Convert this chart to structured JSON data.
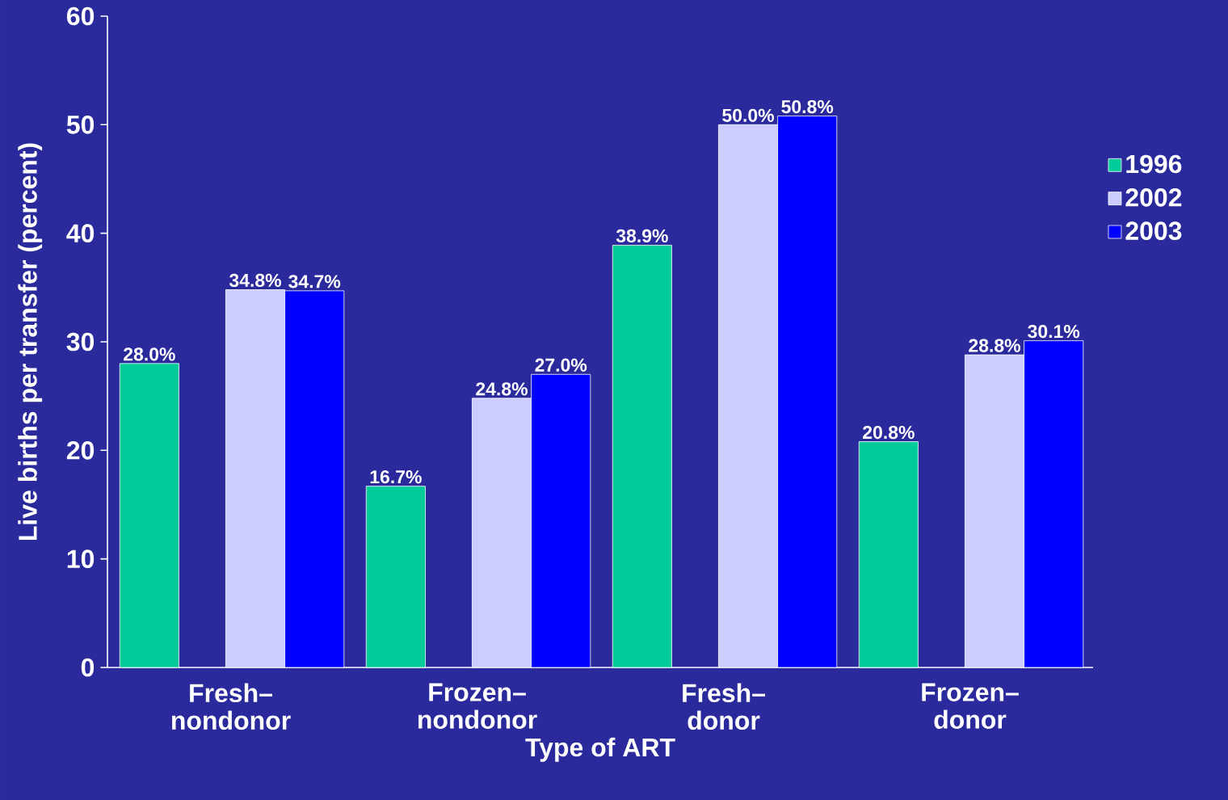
{
  "chart_data": {
    "type": "bar",
    "xlabel": "Type of ART",
    "ylabel": "Live births per transfer (percent)",
    "categories": [
      "Fresh–nondonor",
      "Frozen–nondonor",
      "Fresh–donor",
      "Frozen–donor"
    ],
    "series": [
      {
        "name": "1996",
        "color": "#00cc99",
        "values": [
          28.0,
          16.7,
          38.9,
          20.8
        ],
        "value_labels": [
          "28.0%",
          "16.7%",
          "38.9%",
          "20.8%"
        ]
      },
      {
        "name": "2002",
        "color": "#ccccff",
        "values": [
          34.8,
          24.8,
          50.0,
          28.8
        ],
        "value_labels": [
          "34.8%",
          "24.8%",
          "50.0%",
          "28.8%"
        ]
      },
      {
        "name": "2003",
        "color": "#0000ff",
        "values": [
          34.7,
          27.0,
          50.8,
          30.1
        ],
        "value_labels": [
          "34.7%",
          "27.0%",
          "50.8%",
          "30.1%"
        ]
      }
    ],
    "ylim": [
      0,
      60
    ],
    "yticks": [
      0,
      10,
      20,
      30,
      40,
      50,
      60
    ],
    "legend": "right"
  }
}
